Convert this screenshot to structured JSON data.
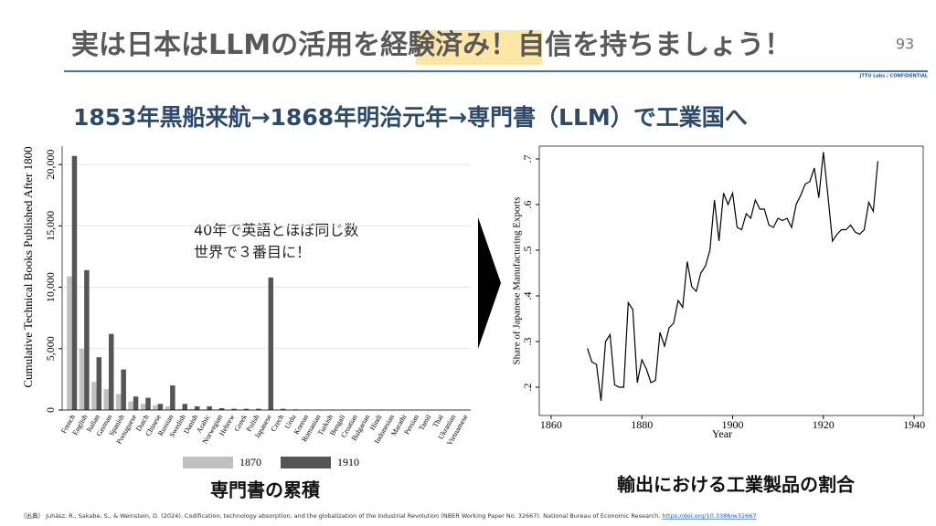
{
  "slide": {
    "title_parts": [
      "実は日本はLLMの活用を",
      "経験済み",
      "！自信を持ちましょう！"
    ],
    "page_number": "93",
    "confidential": "JTTU Labs / CONFIDENTIAL",
    "subtitle": "1853年黒船来航→1868年明治元年→専門書（LLM）で工業国へ",
    "annotation": [
      "40年で英語とほぼ同じ数",
      "世界で３番目に！"
    ],
    "captions": [
      "専門書の累積",
      "輸出における工業製品の割合"
    ],
    "source": {
      "text": "（出典） Juhász, R., Sakabe, S., & Weinstein, D. (2024). Codification, technology absorption, and the globalization of the Industrial Revolution (NBER Working Paper No. 32667). National Bureau of Economic Research.",
      "link": "https://doi.org/10.3386/w32667"
    }
  },
  "chart_data": [
    {
      "type": "bar",
      "y_label": "Cumulative Technical Books Published After 1800",
      "categories": [
        "French",
        "English",
        "Italian",
        "German",
        "Spanish",
        "Portuguese",
        "Dutch",
        "Chinese",
        "Russian",
        "Swedish",
        "Danish",
        "Arabic",
        "Norwegian",
        "Hebrew",
        "Greek",
        "Polish",
        "Japanese",
        "Czech",
        "Urdu",
        "Korean",
        "Romanian",
        "Turkish",
        "Bengali",
        "Croatian",
        "Bulgarian",
        "Hindi",
        "Indonesian",
        "Marathi",
        "Persian",
        "Tamil",
        "Thai",
        "Ukranian",
        "Vietnamese"
      ],
      "series": [
        {
          "name": "1870",
          "color": "#c0c0c0",
          "values": [
            10900,
            5000,
            2300,
            1700,
            1300,
            700,
            500,
            400,
            300,
            100,
            100,
            50,
            30,
            20,
            20,
            20,
            0,
            20,
            0,
            0,
            10,
            10,
            0,
            0,
            0,
            0,
            0,
            0,
            0,
            0,
            0,
            0,
            0
          ]
        },
        {
          "name": "1910",
          "color": "#555555",
          "values": [
            20700,
            11400,
            4300,
            6200,
            3300,
            1100,
            1000,
            500,
            2000,
            500,
            300,
            300,
            150,
            100,
            100,
            100,
            10800,
            100,
            50,
            30,
            30,
            30,
            30,
            20,
            20,
            20,
            20,
            10,
            10,
            10,
            10,
            10,
            10
          ]
        }
      ],
      "ylim": [
        0,
        21500
      ],
      "yticks": [
        0,
        {
          "value": 5000,
          "label": "5,000"
        },
        {
          "value": 10000,
          "label": "10,000"
        },
        {
          "value": 15000,
          "label": "15,000"
        },
        {
          "value": 20000,
          "label": "20,000"
        }
      ],
      "grid": true,
      "legend": "bottom"
    },
    {
      "type": "line",
      "x_label": "Year",
      "y_label": "Share of Japanese Manufacturing Exports",
      "color": "#000000",
      "x": [
        1868,
        1869,
        1870,
        1871,
        1872,
        1873,
        1874,
        1875,
        1876,
        1877,
        1878,
        1879,
        1880,
        1881,
        1882,
        1883,
        1884,
        1885,
        1886,
        1887,
        1888,
        1889,
        1890,
        1891,
        1892,
        1893,
        1894,
        1895,
        1896,
        1897,
        1898,
        1899,
        1900,
        1901,
        1902,
        1903,
        1904,
        1905,
        1906,
        1907,
        1908,
        1909,
        1910,
        1911,
        1912,
        1913,
        1914,
        1915,
        1916,
        1917,
        1918,
        1919,
        1920,
        1921,
        1922,
        1923,
        1924,
        1925,
        1926,
        1927,
        1928,
        1929,
        1930,
        1931,
        1932
      ],
      "values": [
        0.285,
        0.255,
        0.25,
        0.17,
        0.3,
        0.315,
        0.205,
        0.2,
        0.2,
        0.385,
        0.37,
        0.21,
        0.26,
        0.24,
        0.21,
        0.215,
        0.32,
        0.29,
        0.33,
        0.34,
        0.39,
        0.375,
        0.475,
        0.42,
        0.41,
        0.45,
        0.465,
        0.5,
        0.61,
        0.52,
        0.625,
        0.6,
        0.625,
        0.55,
        0.545,
        0.58,
        0.57,
        0.61,
        0.59,
        0.59,
        0.555,
        0.55,
        0.57,
        0.565,
        0.57,
        0.55,
        0.6,
        0.62,
        0.645,
        0.65,
        0.68,
        0.615,
        0.715,
        0.62,
        0.52,
        0.535,
        0.545,
        0.545,
        0.555,
        0.54,
        0.535,
        0.545,
        0.605,
        0.585,
        0.695
      ],
      "xlim": [
        1857.4,
        1942
      ],
      "xticks": [
        1860,
        1880,
        1900,
        1920,
        1940
      ],
      "ylim": [
        0.138,
        0.728
      ],
      "yticks": [
        {
          "value": 0.2,
          "label": ".2"
        },
        {
          "value": 0.3,
          "label": ".3"
        },
        {
          "value": 0.4,
          "label": ".4"
        },
        {
          "value": 0.5,
          "label": ".5"
        },
        {
          "value": 0.6,
          "label": ".6"
        },
        {
          "value": 0.7,
          "label": ".7"
        }
      ]
    }
  ]
}
